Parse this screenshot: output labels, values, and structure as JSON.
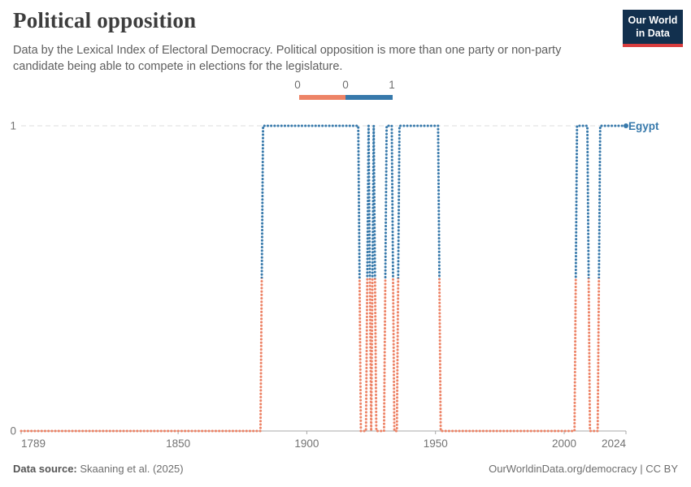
{
  "header": {
    "title": "Political opposition",
    "subtitle_lines": [
      "Data by the Lexical Index of Electoral Democracy. Political opposition is more than one party or non-party",
      "candidate being able to compete in elections for the legislature."
    ],
    "logo_line1": "Our World",
    "logo_line2": "in Data"
  },
  "legend": {
    "label_zero": "0",
    "label_mid": "0",
    "label_one": "1",
    "color_zero": "#ED8366",
    "color_one": "#3779AB"
  },
  "chart_data": {
    "type": "line",
    "title": "Political opposition",
    "xlabel": "",
    "ylabel": "",
    "xlim": [
      1789,
      2024
    ],
    "ylim": [
      0,
      1
    ],
    "x_ticks": [
      1789,
      1850,
      1900,
      1950,
      2000,
      2024
    ],
    "y_ticks": [
      0,
      1
    ],
    "grid": "dashed gridline at y=1, solid axis baseline at y=0",
    "legend_position": "top-center",
    "line_style": "dotted",
    "color_value0": "#ED8366",
    "color_value1": "#3779AB",
    "series": [
      {
        "name": "Egypt",
        "label_color": "#3779AB",
        "segments": [
          {
            "from": 1789,
            "to": 1882,
            "value": 0
          },
          {
            "from": 1883,
            "to": 1920,
            "value": 1
          },
          {
            "from": 1921,
            "to": 1923,
            "value": 0
          },
          {
            "from": 1924,
            "to": 1924,
            "value": 1
          },
          {
            "from": 1925,
            "to": 1925,
            "value": 0
          },
          {
            "from": 1926,
            "to": 1926,
            "value": 1
          },
          {
            "from": 1927,
            "to": 1930,
            "value": 0
          },
          {
            "from": 1931,
            "to": 1933,
            "value": 1
          },
          {
            "from": 1934,
            "to": 1935,
            "value": 0
          },
          {
            "from": 1936,
            "to": 1951,
            "value": 1
          },
          {
            "from": 1952,
            "to": 2004,
            "value": 0
          },
          {
            "from": 2005,
            "to": 2009,
            "value": 1
          },
          {
            "from": 2010,
            "to": 2013,
            "value": 0
          },
          {
            "from": 2014,
            "to": 2024,
            "value": 1
          }
        ]
      }
    ]
  },
  "footer": {
    "source_label": "Data source:",
    "source_text": " Skaaning et al. (2025)",
    "credit": "OurWorldinData.org/democracy | CC BY"
  }
}
